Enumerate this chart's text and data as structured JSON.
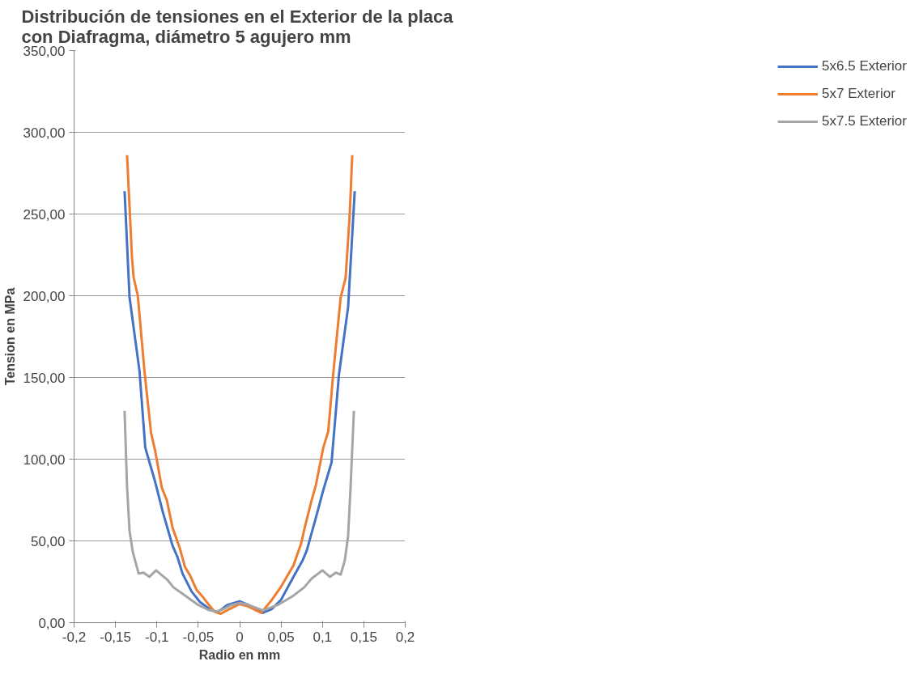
{
  "chart_data": {
    "type": "line",
    "title": "Distribución de tensiones en el  Exterior de la placa con Diafragma, diámetro 5 agujero mm",
    "xlabel": "Radio en mm",
    "ylabel": "Tension en MPa",
    "xlim": [
      -0.2,
      0.2
    ],
    "xticks": [
      {
        "value": -0.2,
        "label": "-0,2"
      },
      {
        "value": -0.15,
        "label": "-0,15"
      },
      {
        "value": -0.1,
        "label": "-0,1"
      },
      {
        "value": -0.05,
        "label": "-0,05"
      },
      {
        "value": 0,
        "label": "0"
      },
      {
        "value": 0.05,
        "label": "0,05"
      },
      {
        "value": 0.1,
        "label": "0,1"
      },
      {
        "value": 0.15,
        "label": "0,15"
      },
      {
        "value": 0.2,
        "label": "0,2"
      }
    ],
    "ylim": [
      0,
      350
    ],
    "yticks": [
      {
        "value": 0,
        "label": "0,00"
      },
      {
        "value": 50,
        "label": "50,00"
      },
      {
        "value": 100,
        "label": "100,00"
      },
      {
        "value": 150,
        "label": "150,00"
      },
      {
        "value": 200,
        "label": "200,00"
      },
      {
        "value": 250,
        "label": "250,00"
      },
      {
        "value": 300,
        "label": "300,00"
      },
      {
        "value": 350,
        "label": "350,00"
      }
    ],
    "grid": "y",
    "legend": "right",
    "marker": "none",
    "line_style": "solid",
    "series": [
      {
        "name": "5x6.5 Exterior",
        "color": "#4472c4",
        "x": [
          -0.139,
          -0.133,
          -0.121,
          -0.114,
          -0.102,
          -0.093,
          -0.081,
          -0.075,
          -0.069,
          -0.058,
          -0.048,
          -0.034,
          -0.026,
          -0.015,
          0,
          0.01,
          0.028,
          0.039,
          0.05,
          0.066,
          0.076,
          0.081,
          0.092,
          0.101,
          0.111,
          0.12,
          0.131,
          0.139
        ],
        "values": [
          264,
          199,
          154,
          107,
          86,
          68,
          47,
          40,
          30,
          19,
          12.6,
          7.5,
          6.6,
          10.8,
          13,
          11,
          6,
          8.4,
          14,
          29,
          38,
          44,
          64,
          81,
          98,
          152,
          193,
          264
        ]
      },
      {
        "name": "5x7 Exterior",
        "color": "#ed7d31",
        "x": [
          -0.136,
          -0.13,
          -0.128,
          -0.123,
          -0.115,
          -0.107,
          -0.102,
          -0.094,
          -0.088,
          -0.081,
          -0.072,
          -0.066,
          -0.06,
          -0.052,
          -0.045,
          -0.037,
          -0.03,
          -0.023,
          -0.012,
          0,
          0.01,
          0.026,
          0.039,
          0.05,
          0.065,
          0.074,
          0.079,
          0.087,
          0.092,
          0.101,
          0.107,
          0.113,
          0.122,
          0.128,
          0.133,
          0.136
        ],
        "values": [
          286,
          223,
          211,
          200,
          154,
          116,
          105,
          82.5,
          75,
          58,
          45,
          34,
          29,
          20,
          16,
          10.8,
          6.6,
          5.4,
          8.4,
          11.4,
          10,
          6,
          14,
          22,
          35,
          48,
          59,
          75,
          84,
          107,
          117,
          152,
          199,
          211,
          250,
          286
        ]
      },
      {
        "name": "5x7.5 Exterior",
        "color": "#a5a5a5",
        "x": [
          -0.139,
          -0.136,
          -0.133,
          -0.129,
          -0.122,
          -0.116,
          -0.109,
          -0.101,
          -0.087,
          -0.08,
          -0.065,
          -0.05,
          -0.038,
          -0.028,
          -0.019,
          -0.01,
          0,
          0.01,
          0.028,
          0.046,
          0.065,
          0.078,
          0.087,
          0.1,
          0.109,
          0.116,
          0.122,
          0.127,
          0.131,
          0.134,
          0.138
        ],
        "values": [
          129.6,
          83,
          56,
          43,
          30,
          30.6,
          28,
          32,
          26,
          21.6,
          16.2,
          10.8,
          7.8,
          6.8,
          8.4,
          10.8,
          12,
          11,
          7.5,
          10.8,
          16.5,
          21.6,
          27,
          32,
          28,
          30.6,
          29.4,
          38,
          53,
          83,
          129.6
        ]
      }
    ]
  }
}
